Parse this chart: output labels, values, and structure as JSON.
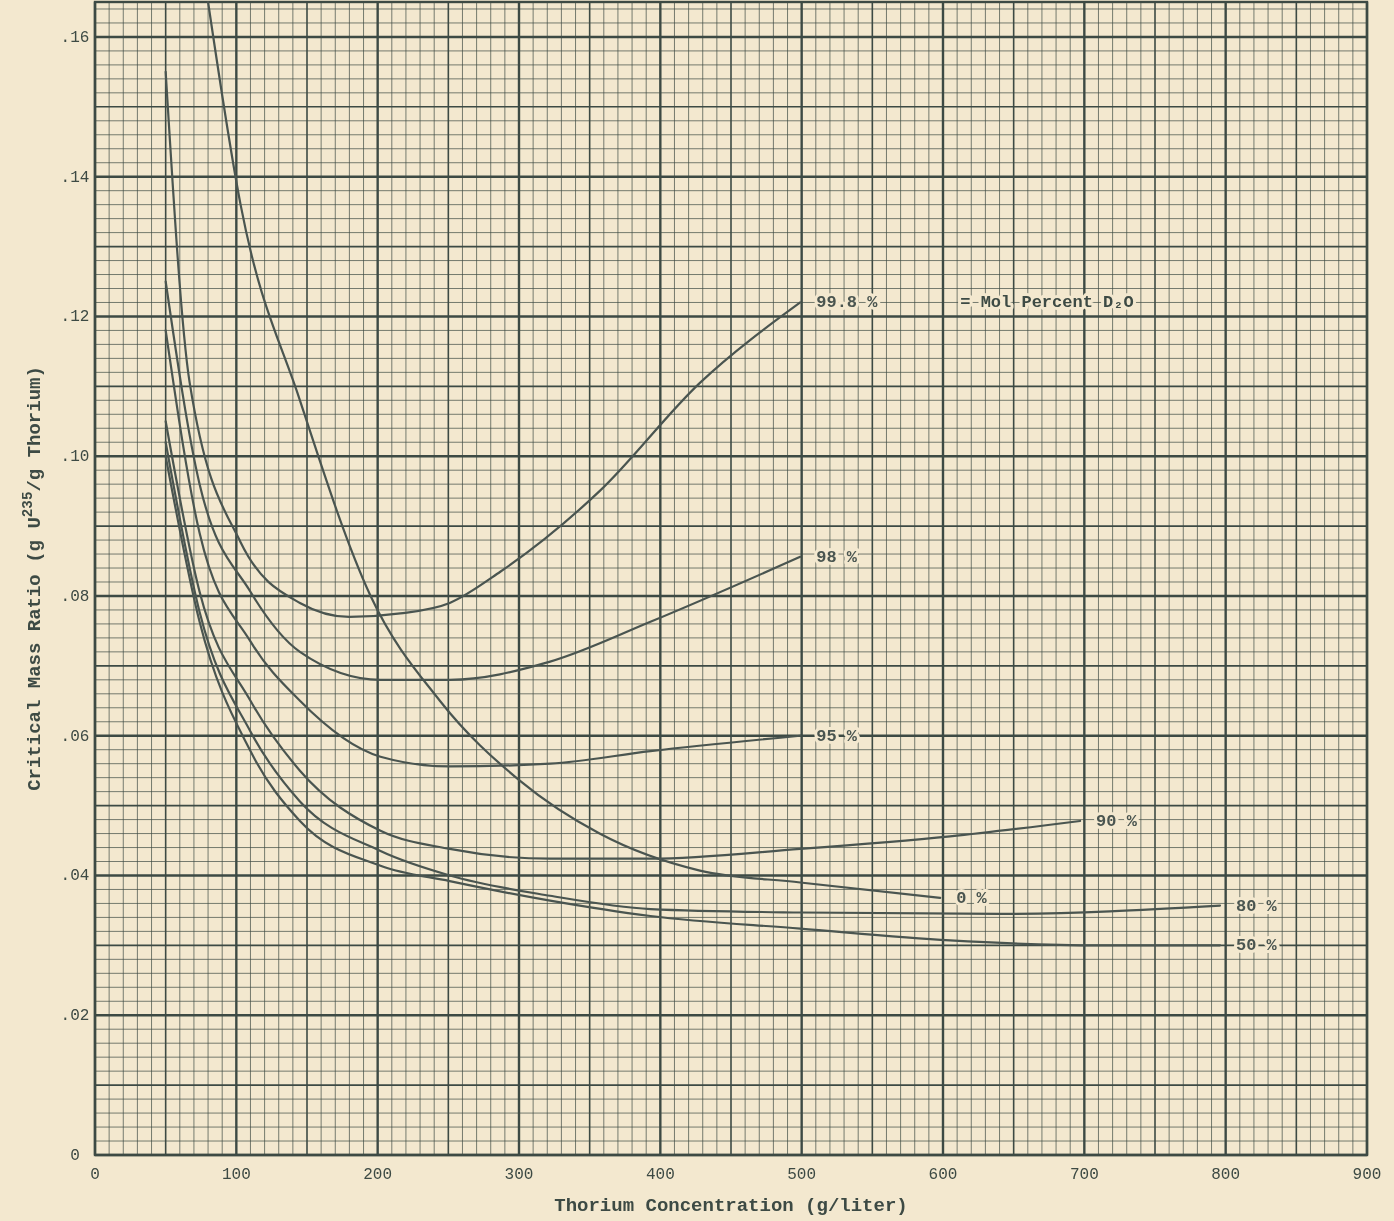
{
  "chart_data": {
    "type": "line",
    "xlabel": "Thorium Concentration (g/liter)",
    "ylabel": "Critical Mass Ratio (g U$^{235}$/g Thorium)",
    "xlim": [
      0,
      900
    ],
    "ylim": [
      0,
      0.165
    ],
    "xticks": [
      0,
      100,
      200,
      300,
      400,
      500,
      600,
      700,
      800,
      900
    ],
    "yticks": [
      0,
      {
        "value": 0.02,
        "label": ".02"
      },
      {
        "value": 0.04,
        "label": ".04"
      },
      {
        "value": 0.06,
        "label": ".06"
      },
      {
        "value": 0.08,
        "label": ".08"
      },
      {
        "value": 0.1,
        "label": ".10"
      },
      {
        "value": 0.12,
        "label": ".12"
      },
      {
        "value": 0.14,
        "label": ".14"
      },
      {
        "value": 0.16,
        "label": ".16"
      }
    ],
    "grid": true,
    "marker": "none",
    "line_style": "solid",
    "annotations": [
      "= Mol Percent D₂O"
    ],
    "series": [
      {
        "name": "99.8 %",
        "color": "#4a5550",
        "x": [
          50,
          67,
          103,
          145,
          180,
          216,
          251,
          287,
          357,
          428,
          499
        ],
        "values": [
          0.155,
          0.1105,
          0.0877,
          0.079,
          0.077,
          0.0775,
          0.079,
          0.0835,
          0.095,
          0.1105,
          0.122
        ]
      },
      {
        "name": "98 %",
        "color": "#4a5550",
        "x": [
          50,
          74,
          110,
          145,
          202,
          251,
          322,
          393,
          499
        ],
        "values": [
          0.125,
          0.096,
          0.0806,
          0.072,
          0.068,
          0.068,
          0.0706,
          0.0763,
          0.0856
        ]
      },
      {
        "name": "95 %",
        "color": "#4a5550",
        "x": [
          50,
          74,
          110,
          145,
          202,
          251,
          322,
          393,
          499
        ],
        "values": [
          0.118,
          0.089,
          0.0735,
          0.065,
          0.057,
          0.0556,
          0.056,
          0.0578,
          0.06
        ]
      },
      {
        "name": "90 %",
        "color": "#4a5550",
        "x": [
          50,
          74,
          110,
          145,
          202,
          251,
          322,
          393,
          499,
          605,
          697
        ],
        "values": [
          0.105,
          0.0806,
          0.065,
          0.055,
          0.0464,
          0.0438,
          0.0424,
          0.0424,
          0.0438,
          0.0456,
          0.0478
        ]
      },
      {
        "name": "0 %",
        "color": "#4a5550",
        "x": [
          80,
          103,
          145,
          195,
          244,
          301,
          357,
          428,
          499,
          598
        ],
        "values": [
          0.165,
          0.136,
          0.108,
          0.08,
          0.065,
          0.0535,
          0.046,
          0.0407,
          0.039,
          0.0368
        ]
      },
      {
        "name": "80 %",
        "color": "#4a5550",
        "x": [
          50,
          74,
          110,
          145,
          202,
          251,
          322,
          393,
          499,
          640,
          796
        ],
        "values": [
          0.102,
          0.0777,
          0.0606,
          0.0506,
          0.0435,
          0.04,
          0.0371,
          0.0352,
          0.0347,
          0.0345,
          0.0357
        ]
      },
      {
        "name": "50 %",
        "color": "#4a5550",
        "x": [
          50,
          74,
          110,
          145,
          202,
          251,
          322,
          393,
          499,
          605,
          711,
          796
        ],
        "values": [
          0.1,
          0.0763,
          0.0578,
          0.0478,
          0.0414,
          0.0392,
          0.0364,
          0.0342,
          0.0324,
          0.0307,
          0.03,
          0.03
        ]
      }
    ]
  }
}
